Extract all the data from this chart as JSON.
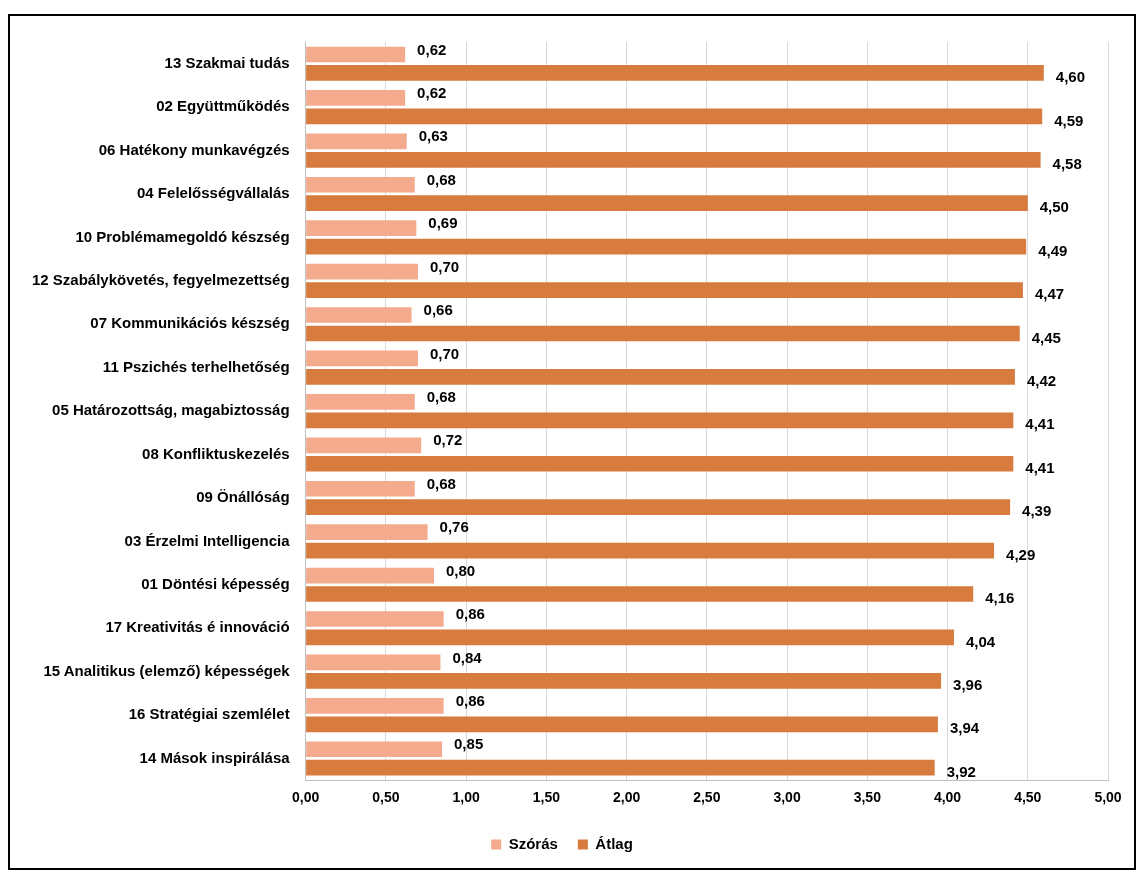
{
  "chart_data": {
    "type": "bar",
    "orientation": "horizontal",
    "categories": [
      "13 Szakmai tudás",
      "02 Együttműködés",
      "06 Hatékony munkavégzés",
      "04 Felelősségvállalás",
      "10 Problémamegoldó készség",
      "12 Szabálykövetés, fegyelmezettség",
      "07 Kommunikációs készség",
      "11 Pszichés terhelhetőség",
      "05 Határozottság, magabiztosság",
      "08 Konfliktuskezelés",
      "09 Önállóság",
      "03 Érzelmi Intelligencia",
      "01 Döntési képesség",
      "17 Kreativitás é innováció",
      "15 Analitikus (elemző) képességek",
      "16 Stratégiai szemlélet",
      "14 Mások inspirálása"
    ],
    "series": [
      {
        "name": "Szórás",
        "color": "#f4aa8c",
        "values": [
          0.62,
          0.62,
          0.63,
          0.68,
          0.69,
          0.7,
          0.66,
          0.7,
          0.68,
          0.72,
          0.68,
          0.76,
          0.8,
          0.86,
          0.84,
          0.86,
          0.85
        ],
        "value_labels": [
          "0,62",
          "0,62",
          "0,63",
          "0,68",
          "0,69",
          "0,70",
          "0,66",
          "0,70",
          "0,68",
          "0,72",
          "0,68",
          "0,76",
          "0,80",
          "0,86",
          "0,84",
          "0,86",
          "0,85"
        ]
      },
      {
        "name": "Átlag",
        "color": "#d77b3f",
        "values": [
          4.6,
          4.59,
          4.58,
          4.5,
          4.49,
          4.47,
          4.45,
          4.42,
          4.41,
          4.41,
          4.39,
          4.29,
          4.16,
          4.04,
          3.96,
          3.94,
          3.92
        ],
        "value_labels": [
          "4,60",
          "4,59",
          "4,58",
          "4,50",
          "4,49",
          "4,47",
          "4,45",
          "4,42",
          "4,41",
          "4,41",
          "4,39",
          "4,29",
          "4,16",
          "4,04",
          "3,96",
          "3,94",
          "3,92"
        ]
      }
    ],
    "xlim": [
      0,
      5
    ],
    "xticks": [
      {
        "value": 0,
        "label": "0,00"
      },
      {
        "value": 0.5,
        "label": "0,50"
      },
      {
        "value": 1,
        "label": "1,00"
      },
      {
        "value": 1.5,
        "label": "1,50"
      },
      {
        "value": 2,
        "label": "2,00"
      },
      {
        "value": 2.5,
        "label": "2,50"
      },
      {
        "value": 3,
        "label": "3,00"
      },
      {
        "value": 3.5,
        "label": "3,50"
      },
      {
        "value": 4,
        "label": "4,00"
      },
      {
        "value": 4.5,
        "label": "4,50"
      },
      {
        "value": 5,
        "label": "5,00"
      }
    ],
    "grid": "x",
    "legend": "bottom"
  }
}
